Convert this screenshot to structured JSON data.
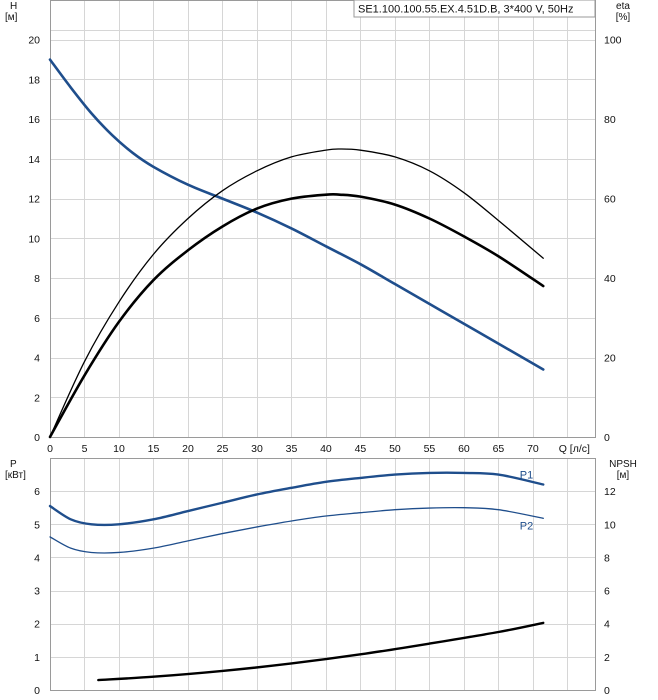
{
  "title": "SE1.100.100.55.EX.4.51D.B, 3*400 V, 50Hz",
  "colors": {
    "blue": "#1f4e8c",
    "black": "#000000",
    "grid": "#d6d6d6"
  },
  "chart_data": [
    {
      "type": "line",
      "panel": "top",
      "left_axis": {
        "label_top": "H",
        "label_unit": "[м]",
        "ylim": [
          0,
          22
        ],
        "ticks": [
          0,
          2,
          4,
          6,
          8,
          10,
          12,
          14,
          16,
          18,
          20
        ]
      },
      "right_axis": {
        "label_top": "eta",
        "label_unit": "[%]",
        "ylim": [
          0,
          110
        ],
        "ticks": [
          0,
          20,
          40,
          60,
          80,
          100
        ]
      },
      "x_axis": {
        "label": "Q [л/с]",
        "xlim": [
          0,
          79
        ],
        "ticks": [
          0,
          5,
          10,
          15,
          20,
          25,
          30,
          35,
          40,
          45,
          50,
          55,
          60,
          65,
          70
        ]
      },
      "grid": true,
      "series": [
        {
          "axis": "left",
          "color": "#1f4e8c",
          "width": 2.6,
          "x": [
            0,
            3,
            6,
            9,
            12,
            15,
            20,
            25,
            30,
            35,
            40,
            45,
            50,
            55,
            60,
            65,
            71.5
          ],
          "y": [
            19.0,
            17.6,
            16.3,
            15.2,
            14.3,
            13.6,
            12.7,
            12.0,
            11.3,
            10.5,
            9.6,
            8.7,
            7.7,
            6.7,
            5.7,
            4.7,
            3.4
          ]
        },
        {
          "axis": "right",
          "color": "#000000",
          "width": 1.3,
          "x": [
            0,
            5,
            10,
            15,
            20,
            25,
            30,
            35,
            40,
            42,
            45,
            50,
            55,
            60,
            65,
            71.5
          ],
          "y": [
            0,
            19,
            34,
            46,
            55,
            62,
            67,
            70.5,
            72.2,
            72.5,
            72.2,
            70.5,
            67,
            61.5,
            54.5,
            45
          ]
        },
        {
          "axis": "right",
          "color": "#000000",
          "width": 2.6,
          "x": [
            0,
            5,
            10,
            15,
            20,
            25,
            30,
            35,
            40,
            42,
            45,
            50,
            55,
            60,
            65,
            71.5
          ],
          "y": [
            0,
            15.5,
            29,
            39.5,
            47,
            53,
            57.5,
            60,
            61,
            61,
            60.5,
            58.5,
            55,
            50.5,
            45.5,
            38
          ]
        }
      ]
    },
    {
      "type": "line",
      "panel": "bottom",
      "left_axis": {
        "label_top": "P",
        "label_unit": "[кВт]",
        "ylim": [
          0,
          7
        ],
        "ticks": [
          0,
          1,
          2,
          3,
          4,
          5,
          6
        ]
      },
      "right_axis": {
        "label_top": "NPSH",
        "label_unit": "[м]",
        "ylim": [
          0,
          14
        ],
        "ticks": [
          0,
          2,
          4,
          6,
          8,
          10,
          12
        ]
      },
      "x_axis": {
        "xlim": [
          0,
          79
        ]
      },
      "grid": true,
      "series": [
        {
          "name": "P1",
          "axis": "left",
          "color": "#1f4e8c",
          "width": 2.4,
          "x": [
            0,
            3,
            6,
            10,
            15,
            20,
            25,
            30,
            35,
            40,
            45,
            50,
            55,
            60,
            65,
            71.5
          ],
          "y": [
            5.55,
            5.15,
            5.0,
            5.0,
            5.15,
            5.4,
            5.65,
            5.9,
            6.1,
            6.28,
            6.4,
            6.5,
            6.55,
            6.55,
            6.5,
            6.2
          ]
        },
        {
          "name": "P2",
          "axis": "left",
          "color": "#1f4e8c",
          "width": 1.3,
          "x": [
            0,
            3,
            6,
            10,
            15,
            20,
            25,
            30,
            35,
            40,
            45,
            50,
            55,
            60,
            65,
            71.5
          ],
          "y": [
            4.62,
            4.28,
            4.15,
            4.15,
            4.28,
            4.5,
            4.72,
            4.92,
            5.1,
            5.25,
            5.35,
            5.44,
            5.49,
            5.5,
            5.44,
            5.18
          ]
        },
        {
          "axis": "right",
          "color": "#000000",
          "width": 2.4,
          "x": [
            7,
            15,
            25,
            35,
            45,
            55,
            65,
            71.5
          ],
          "y": [
            0.6,
            0.8,
            1.15,
            1.6,
            2.15,
            2.8,
            3.5,
            4.05
          ]
        }
      ]
    }
  ]
}
